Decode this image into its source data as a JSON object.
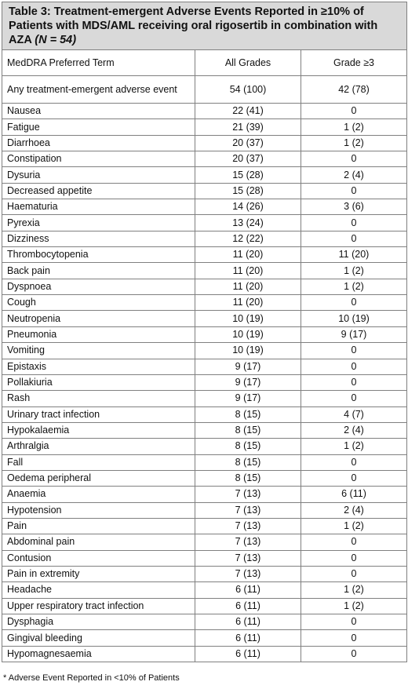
{
  "caption": {
    "main": "Table 3:  Treatment-emergent Adverse Events Reported in ≥10% of Patients with MDS/AML receiving oral rigosertib in combination with AZA ",
    "n": "(N = 54)"
  },
  "headers": {
    "term": "MedDRA Preferred Term",
    "all": "All Grades",
    "grade3": "Grade ≥3"
  },
  "rows": [
    {
      "term": "Any treatment-emergent adverse event",
      "all": "54 (100)",
      "grade3": "42 (78)"
    },
    {
      "term": "Nausea",
      "all": "22 (41)",
      "grade3": "0"
    },
    {
      "term": "Fatigue",
      "all": "21 (39)",
      "grade3": "1 (2)"
    },
    {
      "term": "Diarrhoea",
      "all": "20 (37)",
      "grade3": "1 (2)"
    },
    {
      "term": "Constipation",
      "all": "20 (37)",
      "grade3": "0"
    },
    {
      "term": "Dysuria",
      "all": "15 (28)",
      "grade3": "2 (4)"
    },
    {
      "term": "Decreased appetite",
      "all": "15 (28)",
      "grade3": "0"
    },
    {
      "term": "Haematuria",
      "all": "14 (26)",
      "grade3": "3 (6)"
    },
    {
      "term": "Pyrexia",
      "all": "13 (24)",
      "grade3": "0"
    },
    {
      "term": "Dizziness",
      "all": "12 (22)",
      "grade3": "0"
    },
    {
      "term": "Thrombocytopenia",
      "all": "11 (20)",
      "grade3": "11 (20)"
    },
    {
      "term": "Back pain",
      "all": "11 (20)",
      "grade3": "1 (2)"
    },
    {
      "term": "Dyspnoea",
      "all": "11 (20)",
      "grade3": "1 (2)"
    },
    {
      "term": "Cough",
      "all": "11 (20)",
      "grade3": "0"
    },
    {
      "term": "Neutropenia",
      "all": "10 (19)",
      "grade3": "10 (19)"
    },
    {
      "term": "Pneumonia",
      "all": "10 (19)",
      "grade3": "9 (17)"
    },
    {
      "term": "Vomiting",
      "all": "10 (19)",
      "grade3": "0"
    },
    {
      "term": "Epistaxis",
      "all": "9 (17)",
      "grade3": "0"
    },
    {
      "term": "Pollakiuria",
      "all": "9 (17)",
      "grade3": "0"
    },
    {
      "term": "Rash",
      "all": "9 (17)",
      "grade3": "0"
    },
    {
      "term": "Urinary tract infection",
      "all": "8 (15)",
      "grade3": "4 (7)"
    },
    {
      "term": "Hypokalaemia",
      "all": "8 (15)",
      "grade3": "2 (4)"
    },
    {
      "term": "Arthralgia",
      "all": "8 (15)",
      "grade3": "1 (2)"
    },
    {
      "term": "Fall",
      "all": "8 (15)",
      "grade3": "0"
    },
    {
      "term": "Oedema peripheral",
      "all": "8 (15)",
      "grade3": "0"
    },
    {
      "term": "Anaemia",
      "all": "7 (13)",
      "grade3": "6 (11)"
    },
    {
      "term": "Hypotension",
      "all": "7 (13)",
      "grade3": "2 (4)"
    },
    {
      "term": "Pain",
      "all": "7 (13)",
      "grade3": "1 (2)"
    },
    {
      "term": "Abdominal  pain",
      "all": "7 (13)",
      "grade3": "0"
    },
    {
      "term": "Contusion",
      "all": "7 (13)",
      "grade3": "0"
    },
    {
      "term": "Pain in extremity",
      "all": "7 (13)",
      "grade3": "0"
    },
    {
      "term": "Headache",
      "all": "6 (11)",
      "grade3": "1 (2)"
    },
    {
      "term": "Upper respiratory tract infection",
      "all": "6 (11)",
      "grade3": "1 (2)"
    },
    {
      "term": "Dysphagia",
      "all": "6 (11)",
      "grade3": "0"
    },
    {
      "term": "Gingival bleeding",
      "all": "6 (11)",
      "grade3": "0"
    },
    {
      "term": "Hypomagnesaemia",
      "all": "6 (11)",
      "grade3": "0"
    }
  ],
  "footnote": "* Adverse Event Reported in <10% of Patients"
}
